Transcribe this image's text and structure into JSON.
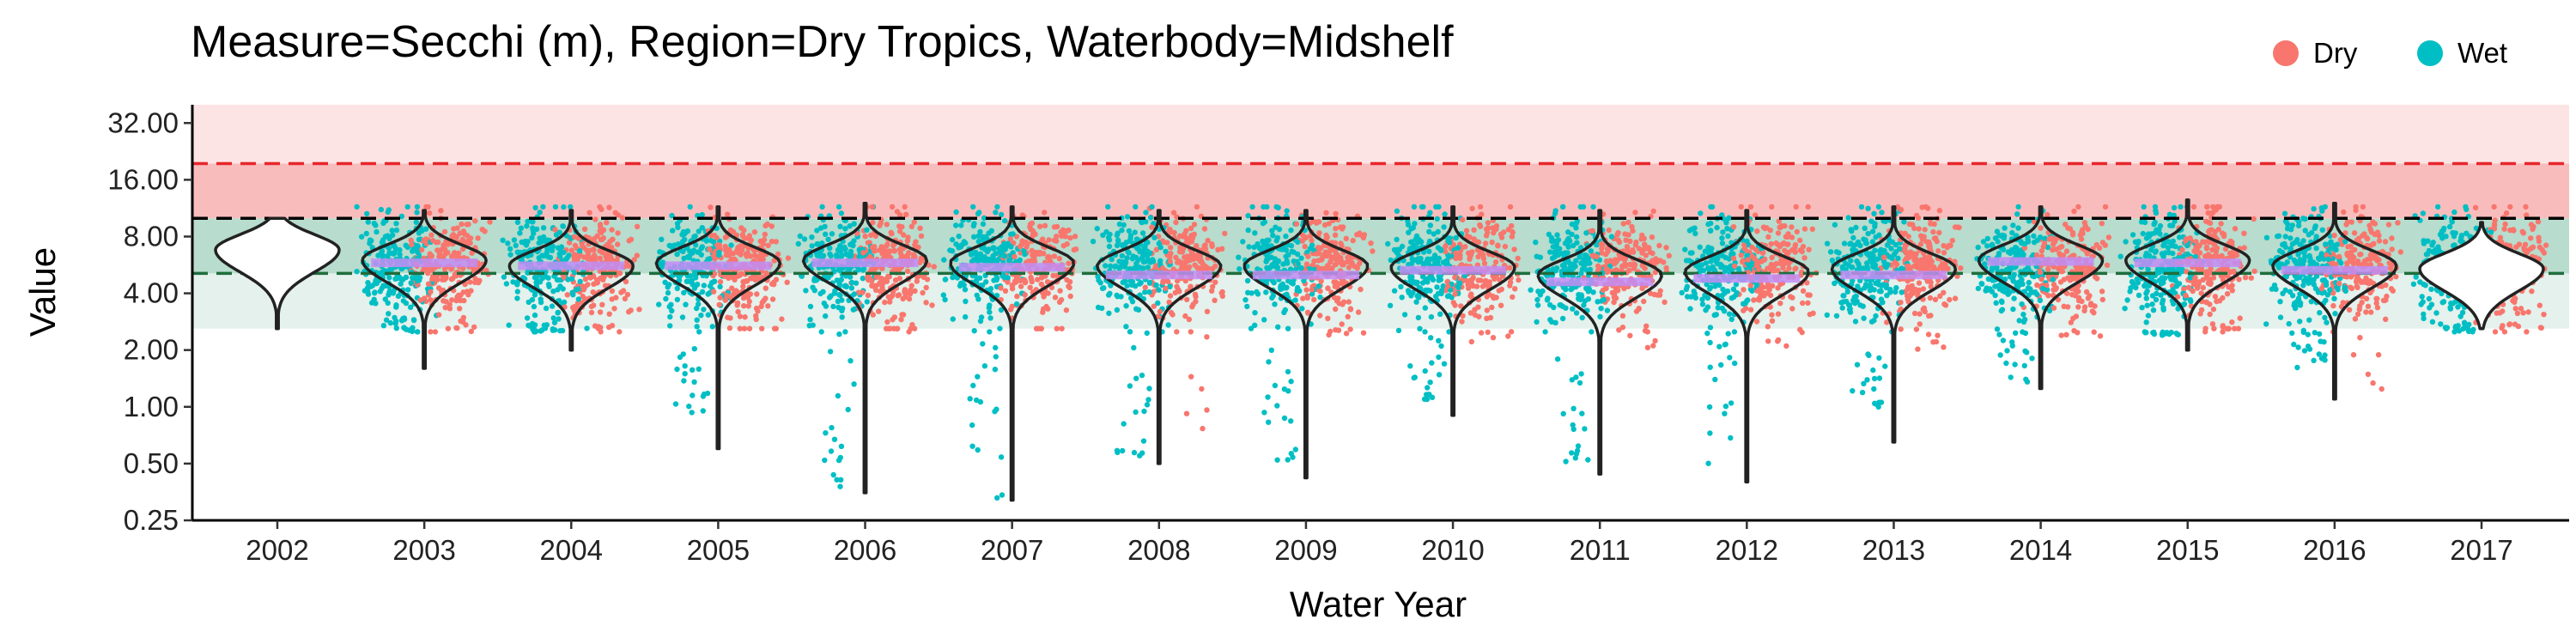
{
  "chart_data": {
    "type": "violin-jitter",
    "title": "Measure=Secchi (m), Region=Dry Tropics, Waterbody=Midshelf",
    "xlabel": "Water Year",
    "ylabel": "Value",
    "y_scale": "log2",
    "ylim": [
      0.25,
      40
    ],
    "y_ticks": [
      0.25,
      0.5,
      1,
      2,
      4,
      8,
      16,
      32
    ],
    "y_tick_labels": [
      "0.25",
      "0.50",
      "1.00",
      "2.00",
      "4.00",
      "8.00",
      "16.00",
      "32.00"
    ],
    "categories": [
      "2002",
      "2003",
      "2004",
      "2005",
      "2006",
      "2007",
      "2008",
      "2009",
      "2010",
      "2011",
      "2012",
      "2013",
      "2014",
      "2015",
      "2016",
      "2017"
    ],
    "legend": {
      "position": "top-right",
      "entries": [
        {
          "label": "Dry",
          "color": "#F8766D"
        },
        {
          "label": "Wet",
          "color": "#00BFC4"
        }
      ]
    },
    "bands": [
      {
        "from": 2.6,
        "to": 5.1,
        "color": "#e4f1ec"
      },
      {
        "from": 5.1,
        "to": 10.0,
        "color": "#b8dccd"
      },
      {
        "from": 10.0,
        "to": 19.5,
        "color": "#f9bcbc"
      },
      {
        "from": 19.5,
        "to": 40.0,
        "color": "#fde4e4"
      }
    ],
    "reference_lines": [
      {
        "value": 19.5,
        "color": "#e8262b",
        "style": "dashed"
      },
      {
        "value": 10.0,
        "color": "#000000",
        "style": "dashed"
      },
      {
        "value": 5.1,
        "color": "#1f6e3d",
        "style": "dashed"
      }
    ],
    "series": [
      {
        "name": "Dry",
        "color": "#F8766D"
      },
      {
        "name": "Wet",
        "color": "#00BFC4"
      }
    ],
    "violins": [
      {
        "year": "2002",
        "median": 6.5,
        "min": 2.6,
        "max": 10.0,
        "mode": 6.8
      },
      {
        "year": "2003",
        "median": 5.8,
        "min": 1.6,
        "max": 11.0,
        "mode": 6.0
      },
      {
        "year": "2004",
        "median": 5.6,
        "min": 2.0,
        "max": 11.0,
        "mode": 5.6
      },
      {
        "year": "2005",
        "median": 5.6,
        "min": 0.6,
        "max": 11.5,
        "mode": 5.8
      },
      {
        "year": "2006",
        "median": 5.8,
        "min": 0.35,
        "max": 12.0,
        "mode": 6.0
      },
      {
        "year": "2007",
        "median": 5.5,
        "min": 0.32,
        "max": 11.5,
        "mode": 5.8
      },
      {
        "year": "2008",
        "median": 5.0,
        "min": 0.5,
        "max": 11.0,
        "mode": 5.6
      },
      {
        "year": "2009",
        "median": 5.0,
        "min": 0.42,
        "max": 11.0,
        "mode": 5.6
      },
      {
        "year": "2010",
        "median": 5.3,
        "min": 0.9,
        "max": 11.5,
        "mode": 5.5
      },
      {
        "year": "2011",
        "median": 4.6,
        "min": 0.44,
        "max": 11.0,
        "mode": 5.0
      },
      {
        "year": "2012",
        "median": 4.8,
        "min": 0.4,
        "max": 11.0,
        "mode": 5.2
      },
      {
        "year": "2013",
        "median": 5.0,
        "min": 0.65,
        "max": 11.5,
        "mode": 5.4
      },
      {
        "year": "2014",
        "median": 5.9,
        "min": 1.25,
        "max": 11.5,
        "mode": 6.0
      },
      {
        "year": "2015",
        "median": 5.8,
        "min": 2.0,
        "max": 12.5,
        "mode": 6.0
      },
      {
        "year": "2016",
        "median": 5.3,
        "min": 1.1,
        "max": 12.0,
        "mode": 5.6
      },
      {
        "year": "2017",
        "median": 5.2,
        "min": 2.6,
        "max": 9.5,
        "mode": 5.4
      }
    ],
    "points_per_year": {
      "2002": {
        "dry": 0,
        "wet": 0
      },
      "2003": {
        "dry": 2.9,
        "wet": 3.0
      },
      "2004": {
        "dry": 2.7,
        "wet": 2.8
      },
      "2005": {
        "dry": 2.6,
        "wet": 0.85
      },
      "2006": {
        "dry": 2.6,
        "wet": 0.36
      },
      "2007": {
        "dry": 2.6,
        "wet": 0.32
      },
      "2008": {
        "dry": 0.7,
        "wet": 0.55
      },
      "2009": {
        "dry": 2.3,
        "wet": 0.45
      },
      "2010": {
        "dry": 2.2,
        "wet": 0.95
      },
      "2011": {
        "dry": 2.0,
        "wet": 0.5
      },
      "2012": {
        "dry": 2.1,
        "wet": 0.42
      },
      "2013": {
        "dry": 2.0,
        "wet": 1.0
      },
      "2014": {
        "dry": 2.2,
        "wet": 1.3
      },
      "2015": {
        "dry": 2.6,
        "wet": 2.4
      },
      "2016": {
        "dry": 1.2,
        "wet": 1.6
      },
      "2017": {
        "dry": 2.8,
        "wet": 2.8
      }
    },
    "grid": false
  }
}
